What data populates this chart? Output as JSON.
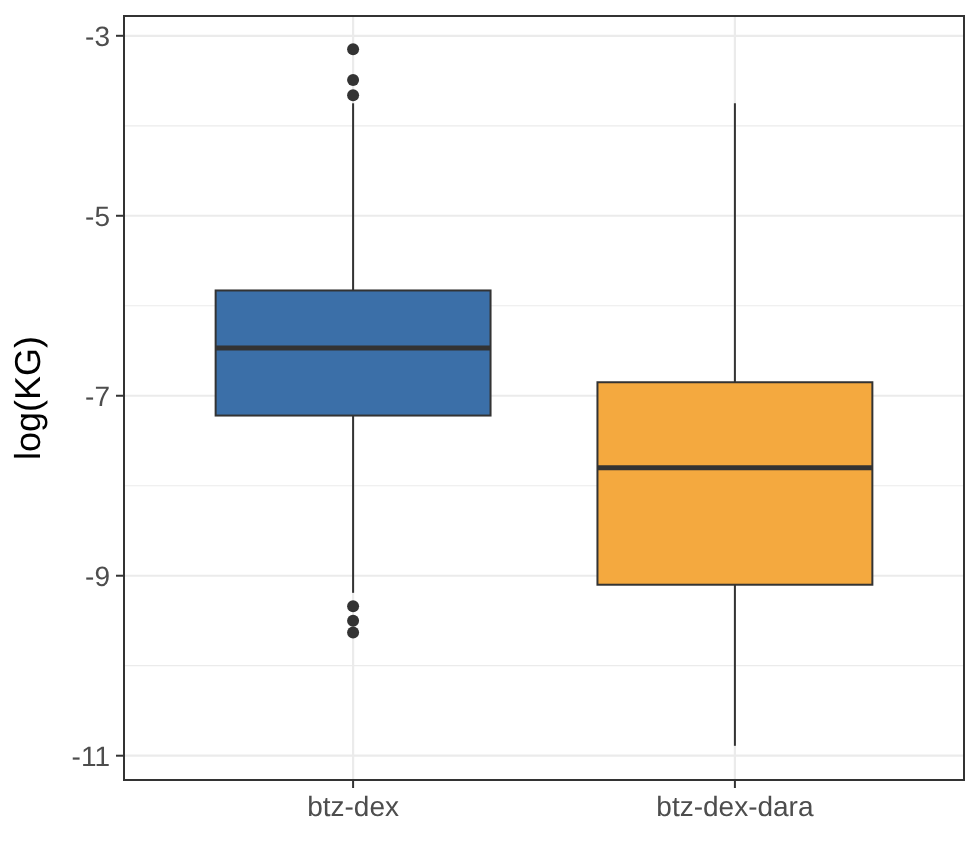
{
  "chart_data": {
    "type": "box",
    "ylabel": "log(KG)",
    "categories": [
      "btz-dex",
      "btz-dex-dara"
    ],
    "series": [
      {
        "color": "#3b6fa8",
        "boxes": [
          {
            "low": -9.19,
            "q1": -7.22,
            "median": -6.47,
            "q3": -5.83,
            "high": -3.75,
            "outliers": [
              -3.15,
              -3.49,
              -3.66,
              -9.34,
              -9.5,
              -9.63
            ]
          },
          null
        ]
      },
      {
        "color": "#f4a93f",
        "boxes": [
          null,
          {
            "low": -10.89,
            "q1": -9.1,
            "median": -7.8,
            "q3": -6.85,
            "high": -3.75
          }
        ]
      }
    ],
    "ylim": [
      -11.27,
      -2.78
    ],
    "yticks": [
      -11,
      {
        "value": -10,
        "label": null
      },
      -9,
      {
        "value": -8,
        "label": null
      },
      -7,
      {
        "value": -6,
        "label": null
      },
      -5,
      {
        "value": -4,
        "label": null
      },
      -3
    ],
    "grid": true
  }
}
